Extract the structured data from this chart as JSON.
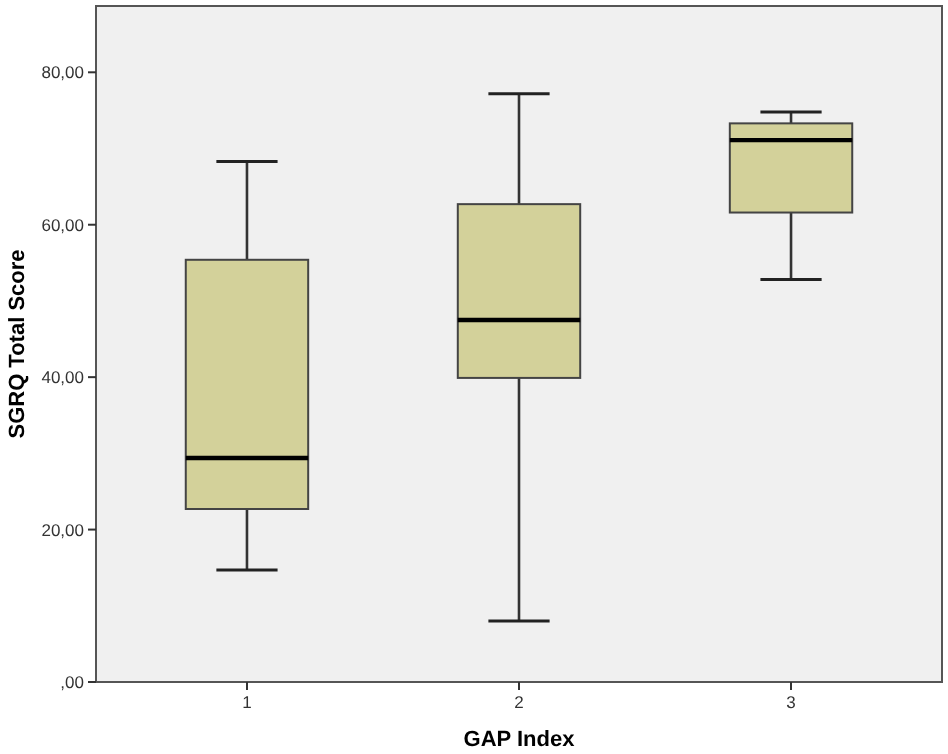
{
  "chart_data": {
    "type": "box",
    "xlabel": "GAP Index",
    "ylabel": "SGRQ Total Score",
    "categories": [
      "1",
      "2",
      "3"
    ],
    "ylim": [
      0,
      88.7
    ],
    "yticks": [
      {
        "value": 0,
        "label": ",00"
      },
      {
        "value": 20,
        "label": "20,00"
      },
      {
        "value": 40,
        "label": "40,00"
      },
      {
        "value": 60,
        "label": "60,00"
      },
      {
        "value": 80,
        "label": "80,00"
      }
    ],
    "color": "#d3d19a",
    "grid": false,
    "boxes": [
      {
        "low": 14.7,
        "q1": 22.7,
        "median": 29.4,
        "q3": 55.4,
        "high": 68.3
      },
      {
        "low": 8.0,
        "q1": 39.9,
        "median": 47.5,
        "q3": 62.7,
        "high": 77.2
      },
      {
        "low": 52.8,
        "q1": 61.6,
        "median": 71.1,
        "q3": 73.3,
        "high": 74.8
      }
    ]
  }
}
